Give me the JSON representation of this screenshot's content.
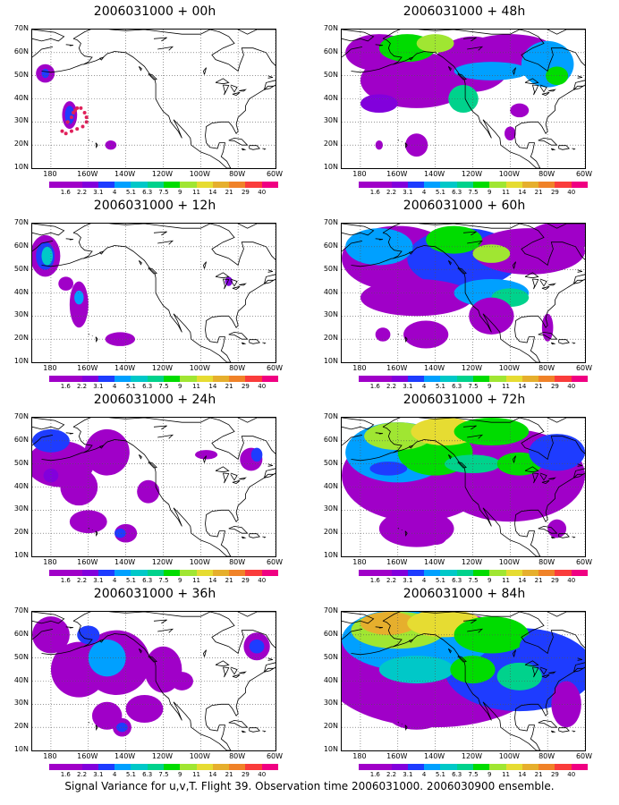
{
  "caption": "Signal Variance for u,v,T. Flight 39. Observation time 2006031000. 2006030900 ensemble.",
  "panels": [
    {
      "title": "2006031000 + 00h"
    },
    {
      "title": "2006031000 + 48h"
    },
    {
      "title": "2006031000 + 12h"
    },
    {
      "title": "2006031000 + 60h"
    },
    {
      "title": "2006031000 + 24h"
    },
    {
      "title": "2006031000 + 72h"
    },
    {
      "title": "2006031000 + 36h"
    },
    {
      "title": "2006031000 + 84h"
    }
  ],
  "lat_labels": [
    "70N",
    "60N",
    "50N",
    "40N",
    "30N",
    "20N",
    "10N"
  ],
  "lon_labels": [
    "180",
    "160W",
    "140W",
    "120W",
    "100W",
    "80W",
    "60W"
  ],
  "colorbar": {
    "labels": [
      "1.6",
      "2.2",
      "3.1",
      "4",
      "5.1",
      "6.3",
      "7.5",
      "9",
      "11",
      "14",
      "21",
      "29",
      "40"
    ],
    "colors": [
      "#a000c8",
      "#8200dc",
      "#1e3cff",
      "#00a0ff",
      "#00c8c8",
      "#00d28c",
      "#00dc00",
      "#a0e632",
      "#e6dc32",
      "#e6af2d",
      "#f08228",
      "#fa3c3c",
      "#f00082"
    ]
  },
  "colors": {
    "background": "#ffffff",
    "coast": "#000000",
    "grid": "#555555"
  }
}
